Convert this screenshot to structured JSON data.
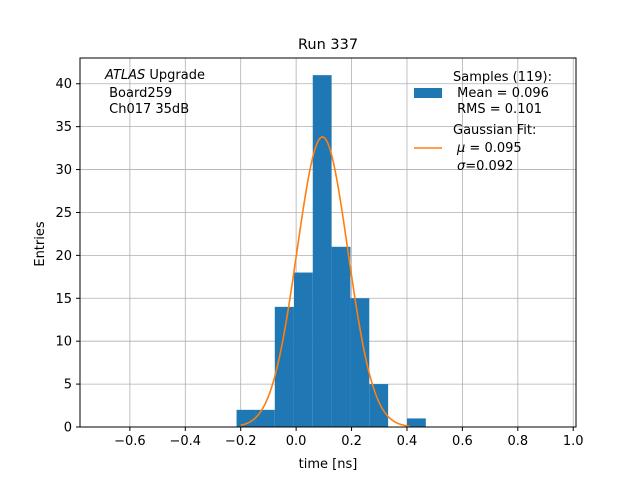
{
  "chart_data": {
    "type": "bar",
    "title": "Run 337",
    "xlabel": "time [ns]",
    "ylabel": "Entries",
    "xlim": [
      -0.78,
      1.01
    ],
    "ylim": [
      0,
      43
    ],
    "grid": true,
    "x_ticks": [
      -0.6,
      -0.4,
      -0.2,
      0.0,
      0.2,
      0.4,
      0.6,
      0.8,
      1.0
    ],
    "x_tick_labels": [
      "−0.6",
      "−0.4",
      "−0.2",
      "0.0",
      "0.2",
      "0.4",
      "0.6",
      "0.8",
      "1.0"
    ],
    "y_ticks": [
      0,
      5,
      10,
      15,
      20,
      25,
      30,
      35,
      40
    ],
    "y_tick_labels": [
      "0",
      "5",
      "10",
      "15",
      "20",
      "25",
      "30",
      "35",
      "40"
    ],
    "histogram": {
      "bin_edges": [
        -0.215,
        -0.145,
        -0.077,
        -0.008,
        0.06,
        0.128,
        0.196,
        0.264,
        0.332,
        0.4,
        0.468
      ],
      "counts": [
        2,
        2,
        14,
        18,
        41,
        21,
        15,
        5,
        0,
        1
      ],
      "color": "#1f77b4"
    },
    "fit": {
      "type": "gaussian",
      "amplitude": 33.8,
      "mu": 0.095,
      "sigma": 0.092,
      "x_range": [
        -0.2,
        0.41
      ],
      "color": "#ff7f0e"
    },
    "annotation": {
      "italic": "ATLAS",
      "line1_rest": " Upgrade",
      "line2": " Board259",
      "line3": " Ch017 35dB"
    },
    "legend": {
      "placement": "top-right",
      "hist_lines": [
        "Samples (119):",
        " Mean = 0.096",
        " RMS = 0.101"
      ],
      "fit_line1": "Gaussian Fit:",
      "fit_mu_symbol": "μ",
      "fit_mu_value": " = 0.095",
      "fit_sigma_symbol": "σ",
      "fit_sigma_value": "=0.092"
    },
    "colors": {
      "grid": "#b0b0b0",
      "axes": "#000000"
    }
  }
}
